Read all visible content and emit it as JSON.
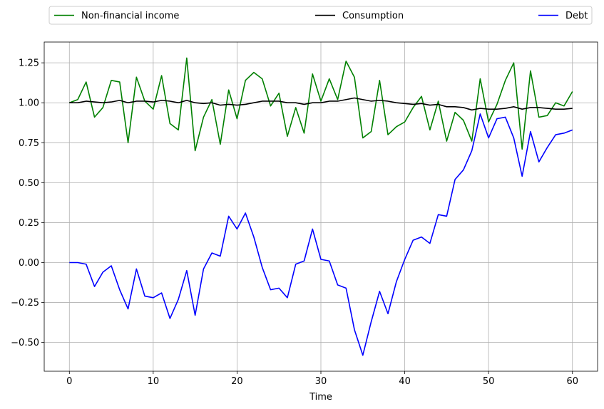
{
  "chart_data": {
    "type": "line",
    "title": "",
    "xlabel": "Time",
    "ylabel": "",
    "xlim": [
      -3,
      63
    ],
    "ylim": [
      -0.68,
      1.38
    ],
    "xticks": [
      0,
      10,
      20,
      30,
      40,
      50,
      60
    ],
    "yticks": [
      -0.5,
      -0.25,
      0.0,
      0.25,
      0.5,
      0.75,
      1.0,
      1.25
    ],
    "xtick_labels": [
      "0",
      "10",
      "20",
      "30",
      "40",
      "50",
      "60"
    ],
    "ytick_labels": [
      "−0.50",
      "−0.25",
      "0.00",
      "0.25",
      "0.50",
      "0.75",
      "1.00",
      "1.25"
    ],
    "grid": true,
    "legend": {
      "placement": "top, outside plot, spanning width",
      "ncol": 3
    },
    "x": [
      0,
      1,
      2,
      3,
      4,
      5,
      6,
      7,
      8,
      9,
      10,
      11,
      12,
      13,
      14,
      15,
      16,
      17,
      18,
      19,
      20,
      21,
      22,
      23,
      24,
      25,
      26,
      27,
      28,
      29,
      30,
      31,
      32,
      33,
      34,
      35,
      36,
      37,
      38,
      39,
      40,
      41,
      42,
      43,
      44,
      45,
      46,
      47,
      48,
      49,
      50,
      51,
      52,
      53,
      54,
      55,
      56,
      57,
      58,
      59,
      60
    ],
    "series": [
      {
        "name": "Non-financial income",
        "color": "#008000",
        "values": [
          1.0,
          1.02,
          1.13,
          0.91,
          0.97,
          1.14,
          1.13,
          0.75,
          1.16,
          1.01,
          0.96,
          1.17,
          0.87,
          0.83,
          1.28,
          0.7,
          0.91,
          1.02,
          0.74,
          1.08,
          0.9,
          1.14,
          1.19,
          1.15,
          0.98,
          1.06,
          0.79,
          0.97,
          0.81,
          1.18,
          1.01,
          1.15,
          1.02,
          1.26,
          1.16,
          0.78,
          0.82,
          1.14,
          0.8,
          0.85,
          0.88,
          0.97,
          1.04,
          0.83,
          1.01,
          0.76,
          0.94,
          0.89,
          0.76,
          1.15,
          0.88,
          0.99,
          1.14,
          1.25,
          0.71,
          1.2,
          0.91,
          0.92,
          1.0,
          0.98,
          1.07
        ]
      },
      {
        "name": "Consumption",
        "color": "#000000",
        "values": [
          1.0,
          1.0,
          1.01,
          1.005,
          1.0,
          1.005,
          1.015,
          1.0,
          1.01,
          1.01,
          1.005,
          1.015,
          1.01,
          1.0,
          1.015,
          1.0,
          0.995,
          1.0,
          0.985,
          0.99,
          0.985,
          0.99,
          1.0,
          1.01,
          1.01,
          1.01,
          1.0,
          1.0,
          0.99,
          1.0,
          1.0,
          1.01,
          1.01,
          1.02,
          1.03,
          1.02,
          1.01,
          1.015,
          1.01,
          1.0,
          0.995,
          0.99,
          0.995,
          0.985,
          0.99,
          0.975,
          0.975,
          0.97,
          0.955,
          0.965,
          0.96,
          0.96,
          0.965,
          0.975,
          0.96,
          0.97,
          0.97,
          0.965,
          0.96,
          0.96,
          0.965
        ]
      },
      {
        "name": "Debt",
        "color": "#0000ff",
        "values": [
          0.0,
          0.0,
          -0.01,
          -0.15,
          -0.06,
          -0.02,
          -0.17,
          -0.29,
          -0.04,
          -0.21,
          -0.22,
          -0.19,
          -0.35,
          -0.23,
          -0.05,
          -0.33,
          -0.04,
          0.06,
          0.04,
          0.29,
          0.21,
          0.31,
          0.16,
          -0.03,
          -0.17,
          -0.16,
          -0.22,
          -0.01,
          0.01,
          0.21,
          0.02,
          0.01,
          -0.14,
          -0.16,
          -0.42,
          -0.58,
          -0.37,
          -0.18,
          -0.32,
          -0.12,
          0.02,
          0.14,
          0.16,
          0.12,
          0.3,
          0.29,
          0.52,
          0.58,
          0.7,
          0.93,
          0.78,
          0.9,
          0.91,
          0.78,
          0.54,
          0.82,
          0.63,
          0.72,
          0.8,
          0.81,
          0.83
        ]
      }
    ]
  }
}
